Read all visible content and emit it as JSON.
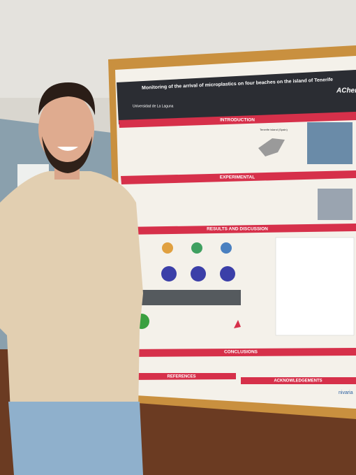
{
  "poster": {
    "title": "Monitoring of the arrival of microplastics on four beaches on the island of Tenerife",
    "institution": "Universidad de La Laguna",
    "logo": "AChem",
    "sections": {
      "introduction": "INTRODUCTION",
      "experimental": "EXPERIMENTAL",
      "results": "RESULTS AND DISCUSSION",
      "conclusions": "CONCLUSIONS",
      "references": "REFERENCES",
      "acknowledgements": "ACKNOWLEDGEMENTS"
    },
    "map_label": "Tenerife island (Spain)",
    "sponsor": "nivaria"
  }
}
